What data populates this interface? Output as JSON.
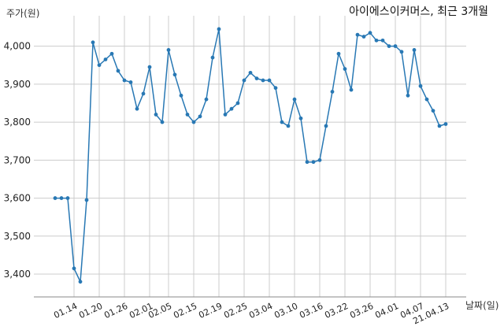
{
  "chart_data": {
    "type": "line",
    "title": "아이에스이커머스, 최근 3개월",
    "ylabel": "주가(원)",
    "xlabel": "날짜(일)",
    "ylim": [
      3340,
      4080
    ],
    "yticks": [
      3400,
      3500,
      3600,
      3700,
      3800,
      3900,
      4000
    ],
    "ytick_labels": [
      "3,400",
      "3,500",
      "3,600",
      "3,700",
      "3,800",
      "3,900",
      "4,000"
    ],
    "xtick_labels": [
      "01.14",
      "01.20",
      "01.26",
      "02.01",
      "02.05",
      "02.15",
      "02.19",
      "02.25",
      "03.04",
      "03.10",
      "03.16",
      "03.22",
      "03.26",
      "04.01",
      "04.07",
      "21.04.13"
    ],
    "xtick_indices": [
      3,
      7,
      11,
      15,
      18,
      22,
      26,
      30,
      34,
      38,
      42,
      46,
      50,
      54,
      58,
      62
    ],
    "color": "#2878b4",
    "grid": true,
    "series": [
      {
        "values": [
          3600,
          3600,
          3600,
          3415,
          3380,
          3595,
          4010,
          3950,
          3965,
          3980,
          3935,
          3910,
          3905,
          3835,
          3875,
          3945,
          3820,
          3800,
          3990,
          3925,
          3870,
          3820,
          3800,
          3815,
          3860,
          3970,
          4045,
          3820,
          3835,
          3850,
          3910,
          3930,
          3915,
          3910,
          3910,
          3890,
          3800,
          3790,
          3860,
          3810,
          3695,
          3695,
          3700,
          3790,
          3880,
          3980,
          3940,
          3885,
          4030,
          4025,
          4035,
          4015,
          4015,
          4000,
          4000,
          3985,
          3870,
          3990,
          3895,
          3860,
          3830,
          3790,
          3795
        ]
      }
    ]
  }
}
